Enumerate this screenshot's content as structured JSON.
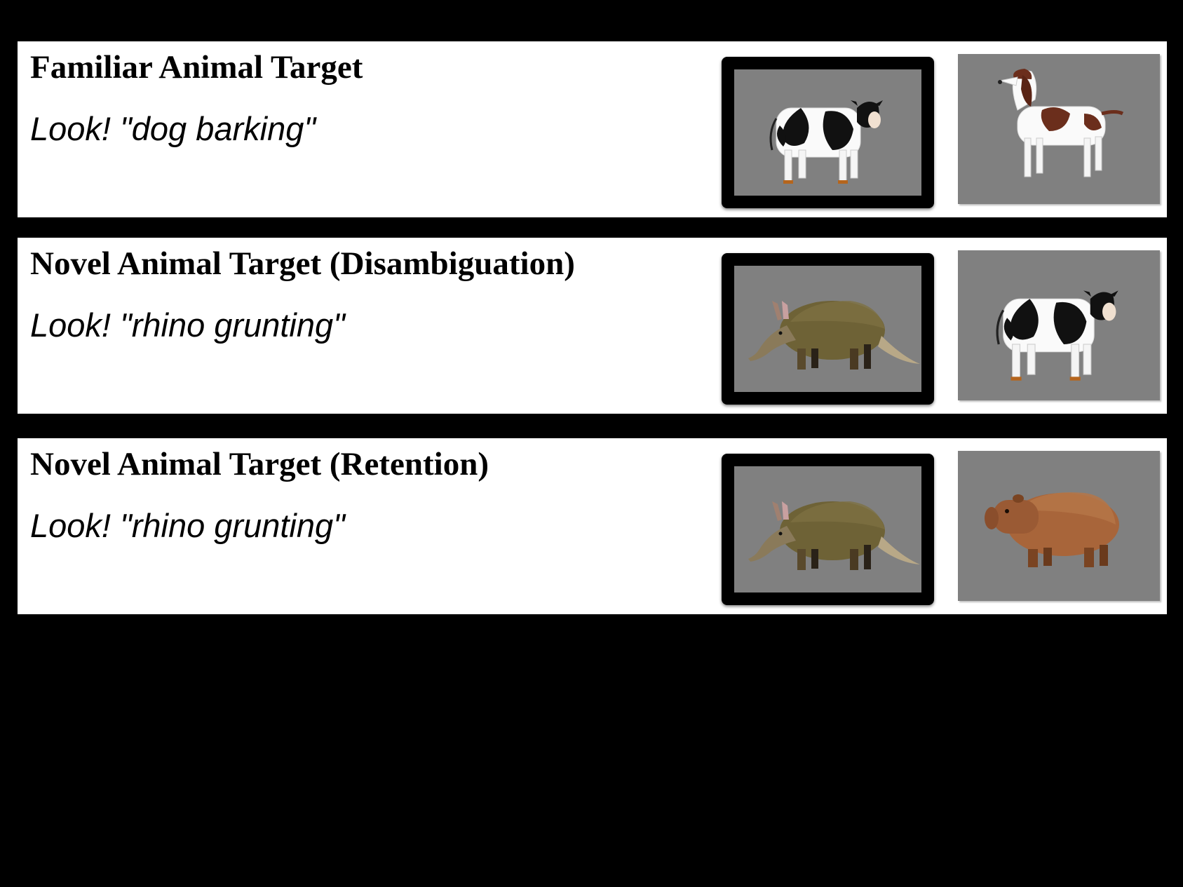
{
  "rows": [
    {
      "title": "Familiar Animal Target",
      "prompt": "Look! \"dog barking\"",
      "target_image": "cow",
      "distractor_image": "springer-spaniel"
    },
    {
      "title": "Novel Animal Target (Disambiguation)",
      "prompt": "Look! \"rhino grunting\"",
      "target_image": "aardvark",
      "distractor_image": "cow"
    },
    {
      "title": "Novel Animal Target (Retention)",
      "prompt": "Look! \"rhino grunting\"",
      "target_image": "aardvark",
      "distractor_image": "capybara"
    }
  ],
  "colors": {
    "background": "#000000",
    "panel": "#ffffff",
    "image_background": "#808080",
    "target_frame": "#000000"
  }
}
